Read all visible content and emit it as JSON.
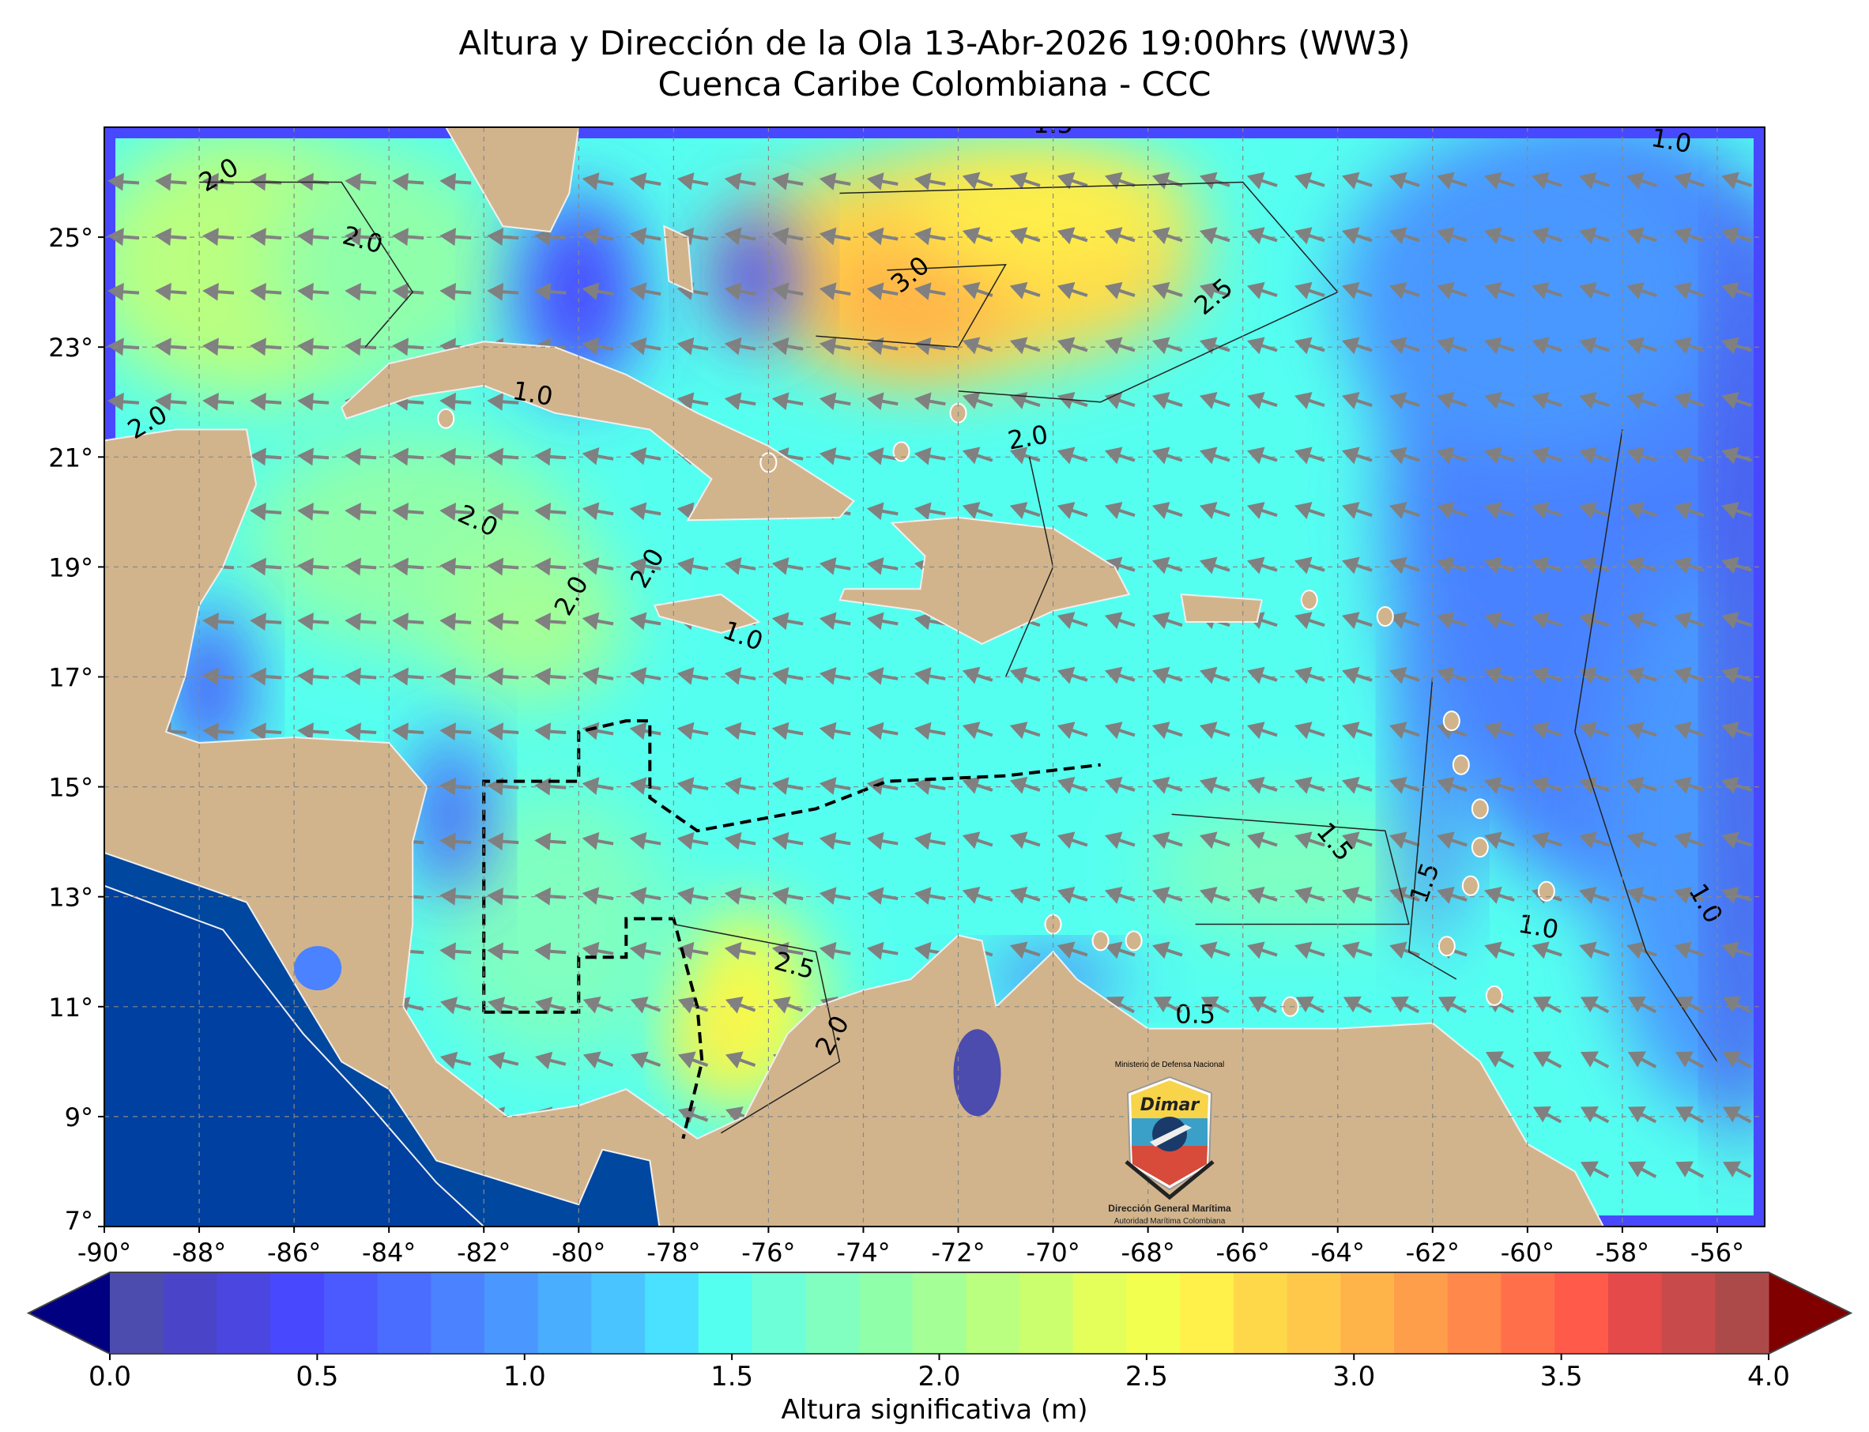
{
  "title": "Altura y Dirección de la Ola 13-Abr-2026 19:00hrs (WW3)",
  "subtitle": "Cuenca Caribe Colombiana - CCC",
  "map": {
    "lon_range": [
      -90,
      -55
    ],
    "lat_range": [
      7,
      27
    ],
    "x_ticks": [
      "-90°",
      "-88°",
      "-86°",
      "-84°",
      "-82°",
      "-80°",
      "-78°",
      "-76°",
      "-74°",
      "-72°",
      "-70°",
      "-68°",
      "-66°",
      "-64°",
      "-62°",
      "-60°",
      "-58°",
      "-56°"
    ],
    "y_ticks": [
      "7°",
      "9°",
      "11°",
      "13°",
      "15°",
      "17°",
      "19°",
      "21°",
      "23°",
      "25°"
    ],
    "grid": true,
    "arrow_color": "#808080",
    "land_color": "#d2b48c",
    "contour_labels": [
      "2.0",
      "2.0",
      "2.0",
      "2.0",
      "2.0",
      "2.0",
      "3.0",
      "2.5",
      "2.0",
      "1.5",
      "1.0",
      "1.0",
      "1.5",
      "1.0",
      "1.0",
      "1.5",
      "2.5",
      "2.0",
      "0.5",
      "1.0"
    ]
  },
  "colorbar": {
    "label": "Altura significativa (m)",
    "min": 0,
    "max": 4,
    "ticks": [
      "0.0",
      "0.5",
      "1.0",
      "1.5",
      "2.0",
      "2.5",
      "3.0",
      "3.5",
      "4.0"
    ],
    "under_color": "#000080",
    "over_color": "#800000",
    "colors": [
      "#4c4cae",
      "#4a45c8",
      "#4b46e0",
      "#4848ff",
      "#4a5aff",
      "#4a6cff",
      "#4a82ff",
      "#4a98ff",
      "#4aaeff",
      "#4ac4ff",
      "#4ae0ff",
      "#55fff0",
      "#6cffd8",
      "#80ffc0",
      "#90ffaa",
      "#a4ff96",
      "#baff80",
      "#ccff6e",
      "#e4ff5a",
      "#f2ff4e",
      "#fff04a",
      "#ffd84a",
      "#ffc84a",
      "#ffb44a",
      "#ff9e4a",
      "#ff884a",
      "#ff704a",
      "#ff5a4a",
      "#e44a4a",
      "#c84a4a",
      "#ac4a4a"
    ]
  },
  "logo": {
    "top_text": "Ministerio de Defensa Nacional",
    "brand": "Dimar",
    "name": "Dirección General Marítima",
    "tagline": "Autoridad Marítima Colombiana"
  }
}
